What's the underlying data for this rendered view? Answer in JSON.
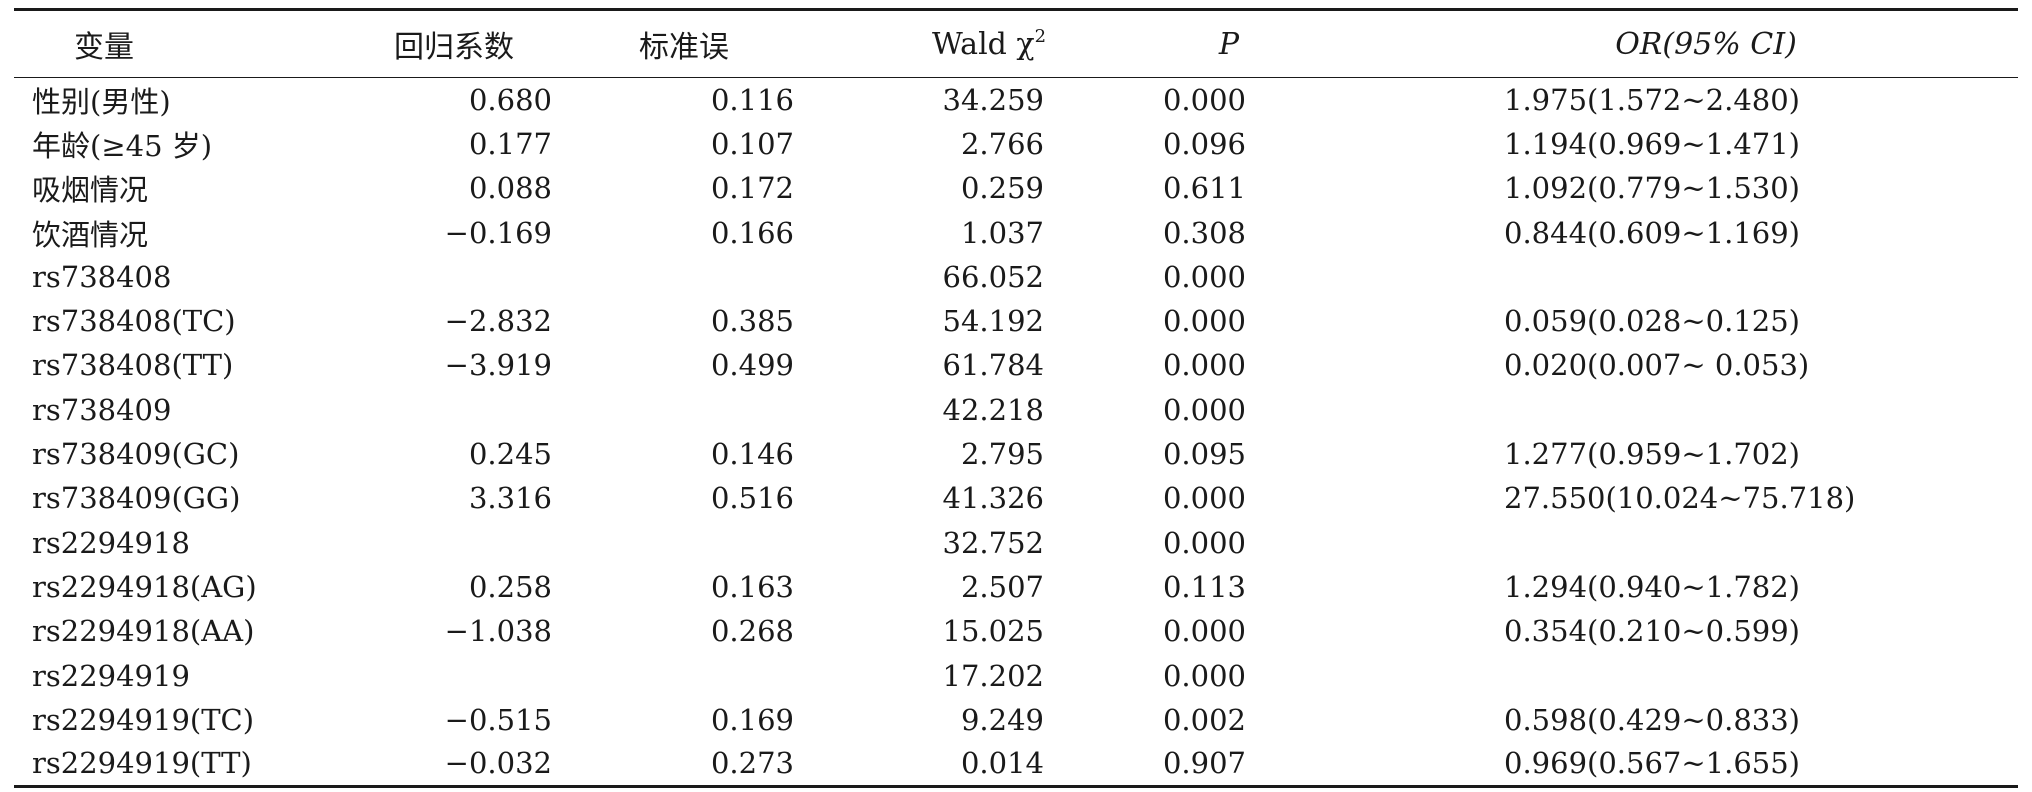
{
  "table": {
    "headers": {
      "variable": "变量",
      "coefficient": "回归系数",
      "std_error": "标准误",
      "wald_prefix": "Wald χ",
      "wald_sup": "2",
      "p": "P",
      "or_ci": "OR(95% CI)"
    },
    "rows": [
      {
        "variable": "性别(男性)",
        "coefficient": "0.680",
        "std_error": "0.116",
        "wald": "34.259",
        "p": "0.000",
        "or_ci": "1.975(1.572~2.480)"
      },
      {
        "variable": "年龄(≥45 岁)",
        "coefficient": "0.177",
        "std_error": "0.107",
        "wald": "2.766",
        "p": "0.096",
        "or_ci": "1.194(0.969~1.471)"
      },
      {
        "variable": "吸烟情况",
        "coefficient": "0.088",
        "std_error": "0.172",
        "wald": "0.259",
        "p": "0.611",
        "or_ci": "1.092(0.779~1.530)"
      },
      {
        "variable": "饮酒情况",
        "coefficient": "−0.169",
        "std_error": "0.166",
        "wald": "1.037",
        "p": "0.308",
        "or_ci": "0.844(0.609~1.169)"
      },
      {
        "variable": "rs738408",
        "coefficient": "",
        "std_error": "",
        "wald": "66.052",
        "p": "0.000",
        "or_ci": ""
      },
      {
        "variable": "rs738408(TC)",
        "coefficient": "−2.832",
        "std_error": "0.385",
        "wald": "54.192",
        "p": "0.000",
        "or_ci": "0.059(0.028~0.125)"
      },
      {
        "variable": "rs738408(TT)",
        "coefficient": "−3.919",
        "std_error": "0.499",
        "wald": "61.784",
        "p": "0.000",
        "or_ci": "0.020(0.007~ 0.053)"
      },
      {
        "variable": "rs738409",
        "coefficient": "",
        "std_error": "",
        "wald": "42.218",
        "p": "0.000",
        "or_ci": ""
      },
      {
        "variable": "rs738409(GC)",
        "coefficient": "0.245",
        "std_error": "0.146",
        "wald": "2.795",
        "p": "0.095",
        "or_ci": "1.277(0.959~1.702)"
      },
      {
        "variable": "rs738409(GG)",
        "coefficient": "3.316",
        "std_error": "0.516",
        "wald": "41.326",
        "p": "0.000",
        "or_ci": "27.550(10.024~75.718)"
      },
      {
        "variable": "rs2294918",
        "coefficient": "",
        "std_error": "",
        "wald": "32.752",
        "p": "0.000",
        "or_ci": ""
      },
      {
        "variable": "rs2294918(AG)",
        "coefficient": "0.258",
        "std_error": "0.163",
        "wald": "2.507",
        "p": "0.113",
        "or_ci": "1.294(0.940~1.782)"
      },
      {
        "variable": "rs2294918(AA)",
        "coefficient": "−1.038",
        "std_error": "0.268",
        "wald": "15.025",
        "p": "0.000",
        "or_ci": "0.354(0.210~0.599)"
      },
      {
        "variable": "rs2294919",
        "coefficient": "",
        "std_error": "",
        "wald": "17.202",
        "p": "0.000",
        "or_ci": ""
      },
      {
        "variable": "rs2294919(TC)",
        "coefficient": "−0.515",
        "std_error": "0.169",
        "wald": "9.249",
        "p": "0.002",
        "or_ci": "0.598(0.429~0.833)"
      },
      {
        "variable": "rs2294919(TT)",
        "coefficient": "−0.032",
        "std_error": "0.273",
        "wald": "0.014",
        "p": "0.907",
        "or_ci": "0.969(0.567~1.655)"
      }
    ]
  }
}
